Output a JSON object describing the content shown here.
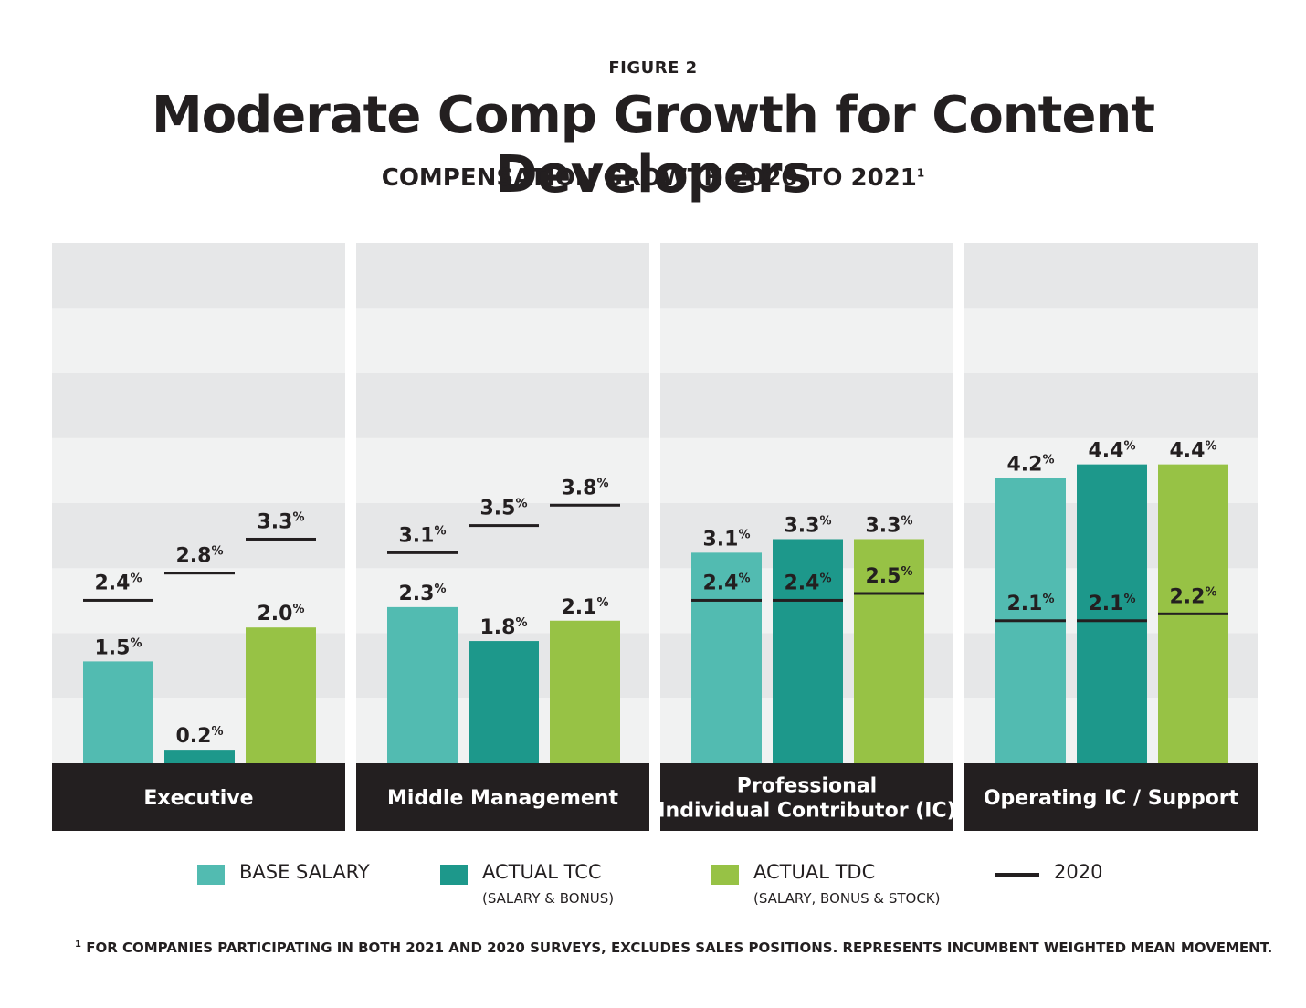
{
  "figure_label": "FIGURE 2",
  "title": "Moderate Comp Growth for Content Developers",
  "subtitle": "COMPENSATION GROWTH 2020 TO 2021",
  "subtitle_footnote_mark": "1",
  "legend": {
    "base": {
      "label": "BASE SALARY",
      "sub": ""
    },
    "tcc": {
      "label": "ACTUAL TCC",
      "sub": "(SALARY & BONUS)"
    },
    "tdc": {
      "label": "ACTUAL TDC",
      "sub": "(SALARY, BONUS & STOCK)"
    },
    "line": {
      "label": "2020"
    }
  },
  "footnote_mark": "1",
  "footnote": "FOR COMPANIES PARTICIPATING IN BOTH 2021 AND 2020 SURVEYS, EXCLUDES SALES POSITIONS. REPRESENTS INCUMBENT WEIGHTED MEAN MOVEMENT.",
  "colors": {
    "base": "#52bbb1",
    "tcc": "#1d988b",
    "tdc": "#97c245",
    "line_2020": "#231f20",
    "panel_band_dark": "#e6e7e8",
    "panel_band_light": "#f1f2f2",
    "category_bar": "#231f20"
  },
  "chart_data": {
    "type": "bar",
    "unit": "%",
    "categories": [
      [
        "Executive"
      ],
      [
        "Middle Management"
      ],
      [
        "Professional",
        "Individual Contributor (IC)"
      ],
      [
        "Operating IC / Support"
      ]
    ],
    "series": [
      {
        "name": "BASE SALARY",
        "values": [
          1.5,
          2.3,
          3.1,
          4.2
        ]
      },
      {
        "name": "ACTUAL TCC",
        "values": [
          0.2,
          1.8,
          3.3,
          4.4
        ]
      },
      {
        "name": "ACTUAL TDC",
        "values": [
          2.0,
          2.1,
          3.3,
          4.4
        ]
      }
    ],
    "series_2020": {
      "name": "2020",
      "values": [
        [
          2.4,
          2.8,
          3.3
        ],
        [
          3.1,
          3.5,
          3.8
        ],
        [
          2.4,
          2.4,
          2.5
        ],
        [
          2.1,
          2.1,
          2.2
        ]
      ]
    },
    "value_labels": {
      "base": [
        "1.5",
        "2.3",
        "3.1",
        "4.2"
      ],
      "tcc": [
        "0.2",
        "1.8",
        "3.3",
        "4.4"
      ],
      "tdc": [
        "2.0",
        "2.1",
        "3.3",
        "4.4"
      ],
      "y2020": [
        [
          "2.4",
          "2.8",
          "3.3"
        ],
        [
          "3.1",
          "3.5",
          "3.8"
        ],
        [
          "2.4",
          "2.4",
          "2.5"
        ],
        [
          "2.1",
          "2.1",
          "2.2"
        ]
      ]
    },
    "ylim": [
      0,
      7.8
    ],
    "grid": "alternating horizontal bands",
    "legend_position": "bottom"
  }
}
